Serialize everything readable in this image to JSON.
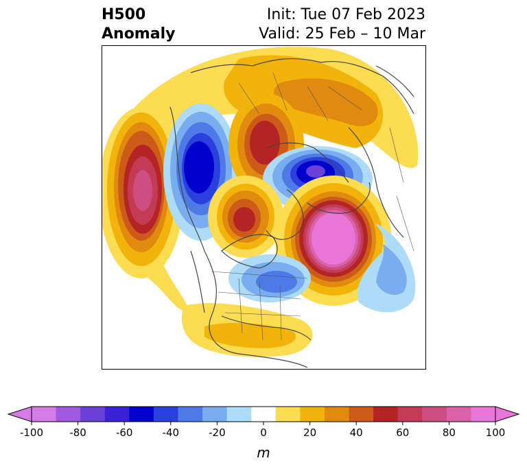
{
  "title": {
    "line1_left": "H500",
    "line2_left": "Anomaly",
    "line1_right": "Init: Tue 07 Feb 2023",
    "line2_right": "Valid: 25 Feb – 10 Mar"
  },
  "colorbar": {
    "unit_label": "m",
    "ticks": [
      "-100",
      "-80",
      "-60",
      "-40",
      "-20",
      "0",
      "20",
      "40",
      "60",
      "80",
      "100"
    ],
    "levels": [
      -100,
      -90,
      -80,
      -70,
      -60,
      -50,
      -40,
      -30,
      -20,
      -10,
      10,
      20,
      30,
      40,
      50,
      60,
      70,
      80,
      90,
      100
    ],
    "colors": [
      "#d47be8",
      "#a05ae0",
      "#6b40d8",
      "#3a22d6",
      "#0000cc",
      "#2a40dc",
      "#4e7ae8",
      "#78aef0",
      "#aedcf8",
      "#ffffff",
      "#fcdc50",
      "#f2b40a",
      "#e08a10",
      "#cc5a18",
      "#b42424",
      "#c23a54",
      "#cc4e80",
      "#dc62a8",
      "#e876d8"
    ],
    "under_color": "#d47be8",
    "over_color": "#e876d8"
  },
  "map_features": [
    {
      "name": "pacific-ridge",
      "sign": "positive",
      "peak_m": 80
    },
    {
      "name": "siberian-trough",
      "sign": "negative",
      "peak_m": -60
    },
    {
      "name": "arctic-ridge",
      "sign": "positive",
      "peak_m": 60
    },
    {
      "name": "scandinavian-trough",
      "sign": "negative",
      "peak_m": -70
    },
    {
      "name": "hudson-bay-ridge",
      "sign": "positive",
      "peak_m": 60
    },
    {
      "name": "greenland-atlantic-ridge",
      "sign": "positive",
      "peak_m": 100
    },
    {
      "name": "north-america-trough",
      "sign": "negative",
      "peak_m": -40
    },
    {
      "name": "atlantic-trough",
      "sign": "negative",
      "peak_m": -30
    },
    {
      "name": "southeast-us-ridge",
      "sign": "positive",
      "peak_m": 30
    }
  ]
}
